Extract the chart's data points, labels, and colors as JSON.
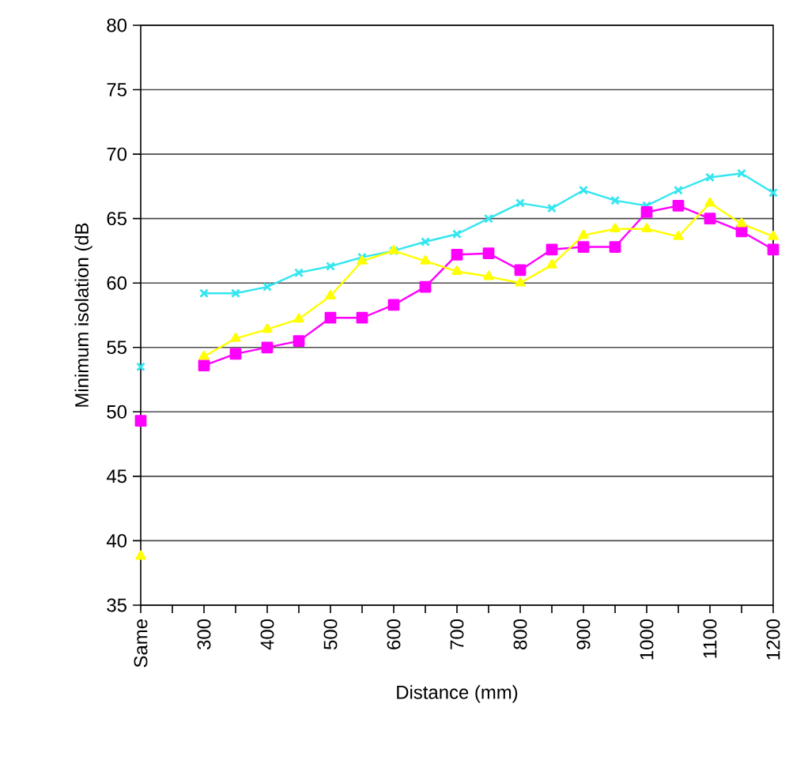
{
  "chart_data": {
    "type": "line",
    "xlabel": "Distance (mm)",
    "ylabel": "Minimum isolation (dB",
    "categories": [
      "Same",
      null,
      "300",
      null,
      "400",
      null,
      "500",
      null,
      "600",
      null,
      "700",
      null,
      "800",
      null,
      "900",
      null,
      "1000",
      null,
      "1100",
      null,
      "1200"
    ],
    "series": [
      {
        "color": "#33e6f0",
        "marker": "cross",
        "values": [
          53.5,
          null,
          59.2,
          59.2,
          59.7,
          60.8,
          61.3,
          62.0,
          62.5,
          63.2,
          63.8,
          65.0,
          66.2,
          65.8,
          67.2,
          66.4,
          66.0,
          67.2,
          68.2,
          68.5,
          67.0
        ]
      },
      {
        "color": "#ff00ff",
        "marker": "square",
        "values": [
          49.3,
          null,
          53.6,
          54.5,
          55.0,
          55.5,
          57.3,
          57.3,
          58.3,
          59.7,
          62.2,
          62.3,
          61.0,
          62.6,
          62.8,
          62.8,
          65.5,
          66.0,
          65.0,
          64.0,
          62.6
        ]
      },
      {
        "color": "#ffff00",
        "marker": "triangle",
        "values": [
          38.8,
          null,
          54.3,
          55.7,
          56.4,
          57.2,
          59.0,
          61.7,
          62.5,
          61.7,
          60.9,
          60.5,
          60.0,
          61.4,
          63.7,
          64.2,
          64.2,
          63.6,
          66.2,
          64.6,
          63.6
        ]
      }
    ],
    "ylim": [
      35,
      80
    ],
    "yticks": [
      35,
      40,
      45,
      50,
      55,
      60,
      65,
      70,
      75,
      80
    ],
    "grid": "y",
    "legend": false
  }
}
